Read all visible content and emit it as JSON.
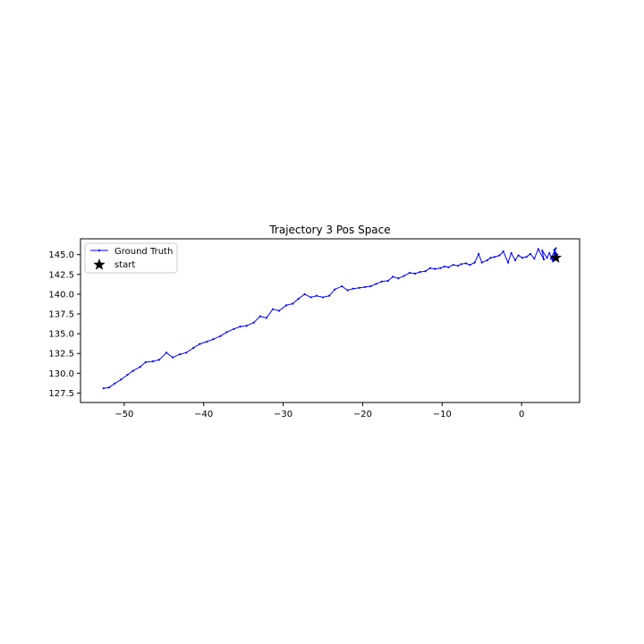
{
  "chart_data": {
    "type": "line",
    "title": "Trajectory 3 Pos Space",
    "xlabel": "",
    "ylabel": "",
    "xlim": [
      -55.5,
      7.3
    ],
    "ylim": [
      126.3,
      147.0
    ],
    "x_ticks": [
      -50,
      -40,
      -30,
      -20,
      -10,
      0
    ],
    "x_tick_labels": [
      "−50",
      "−40",
      "−30",
      "−20",
      "−10",
      "0"
    ],
    "y_ticks": [
      127.5,
      130.0,
      132.5,
      135.0,
      137.5,
      140.0,
      142.5,
      145.0
    ],
    "y_tick_labels": [
      "127.5",
      "130.0",
      "132.5",
      "135.0",
      "137.5",
      "140.0",
      "142.5",
      "145.0"
    ],
    "grid": false,
    "legend_position": "upper-left",
    "series": [
      {
        "name": "Ground Truth",
        "color": "#0000ff",
        "marker": "dot",
        "x": [
          4.4,
          4.1,
          4.5,
          3.7,
          4.3,
          3.9,
          3.5,
          3.2,
          2.6,
          2.8,
          2.1,
          1.6,
          1.1,
          0.6,
          0.1,
          -0.4,
          -0.8,
          -1.3,
          -1.7,
          -2.3,
          -2.8,
          -3.4,
          -3.9,
          -4.3,
          -5.0,
          -5.4,
          -5.9,
          -6.5,
          -7.0,
          -7.6,
          -8.0,
          -8.6,
          -9.2,
          -9.7,
          -10.2,
          -10.9,
          -11.5,
          -12.1,
          -12.8,
          -13.4,
          -14.1,
          -14.8,
          -15.5,
          -16.2,
          -16.8,
          -17.6,
          -18.3,
          -19.0,
          -19.7,
          -20.4,
          -21.2,
          -21.9,
          -22.6,
          -23.5,
          -24.2,
          -25.0,
          -25.8,
          -26.5,
          -27.3,
          -28.1,
          -28.8,
          -29.6,
          -30.5,
          -31.3,
          -32.1,
          -32.9,
          -33.7,
          -34.6,
          -35.4,
          -36.2,
          -37.1,
          -37.9,
          -38.8,
          -39.6,
          -40.5,
          -41.3,
          -42.2,
          -43.0,
          -43.9,
          -44.7,
          -45.6,
          -46.4,
          -47.3,
          -48.0,
          -48.9,
          -49.6,
          -50.4,
          -51.2,
          -51.9,
          -52.6
        ],
        "y": [
          144.7,
          145.6,
          145.0,
          144.5,
          145.8,
          144.3,
          145.2,
          144.6,
          145.5,
          144.4,
          145.7,
          144.5,
          145.1,
          144.7,
          144.6,
          144.9,
          144.3,
          145.2,
          144.0,
          145.4,
          144.9,
          144.7,
          144.6,
          144.3,
          144.0,
          145.1,
          144.0,
          143.7,
          143.9,
          143.8,
          143.6,
          143.7,
          143.4,
          143.5,
          143.3,
          143.2,
          143.3,
          142.9,
          142.8,
          142.6,
          142.7,
          142.3,
          142.0,
          142.2,
          141.7,
          141.6,
          141.3,
          141.0,
          140.9,
          140.8,
          140.7,
          140.5,
          141.0,
          140.6,
          139.8,
          139.6,
          139.8,
          139.6,
          140.0,
          139.4,
          138.8,
          138.6,
          137.9,
          138.1,
          137.0,
          137.2,
          136.4,
          136.0,
          135.9,
          135.6,
          135.2,
          134.7,
          134.3,
          134.0,
          133.7,
          133.2,
          132.6,
          132.4,
          132.0,
          132.6,
          131.7,
          131.5,
          131.4,
          130.8,
          130.3,
          129.8,
          129.2,
          128.7,
          128.2,
          128.1
        ]
      }
    ],
    "markers": [
      {
        "name": "start",
        "x": 4.3,
        "y": 144.6,
        "color": "#000000",
        "symbol": "star"
      }
    ]
  }
}
